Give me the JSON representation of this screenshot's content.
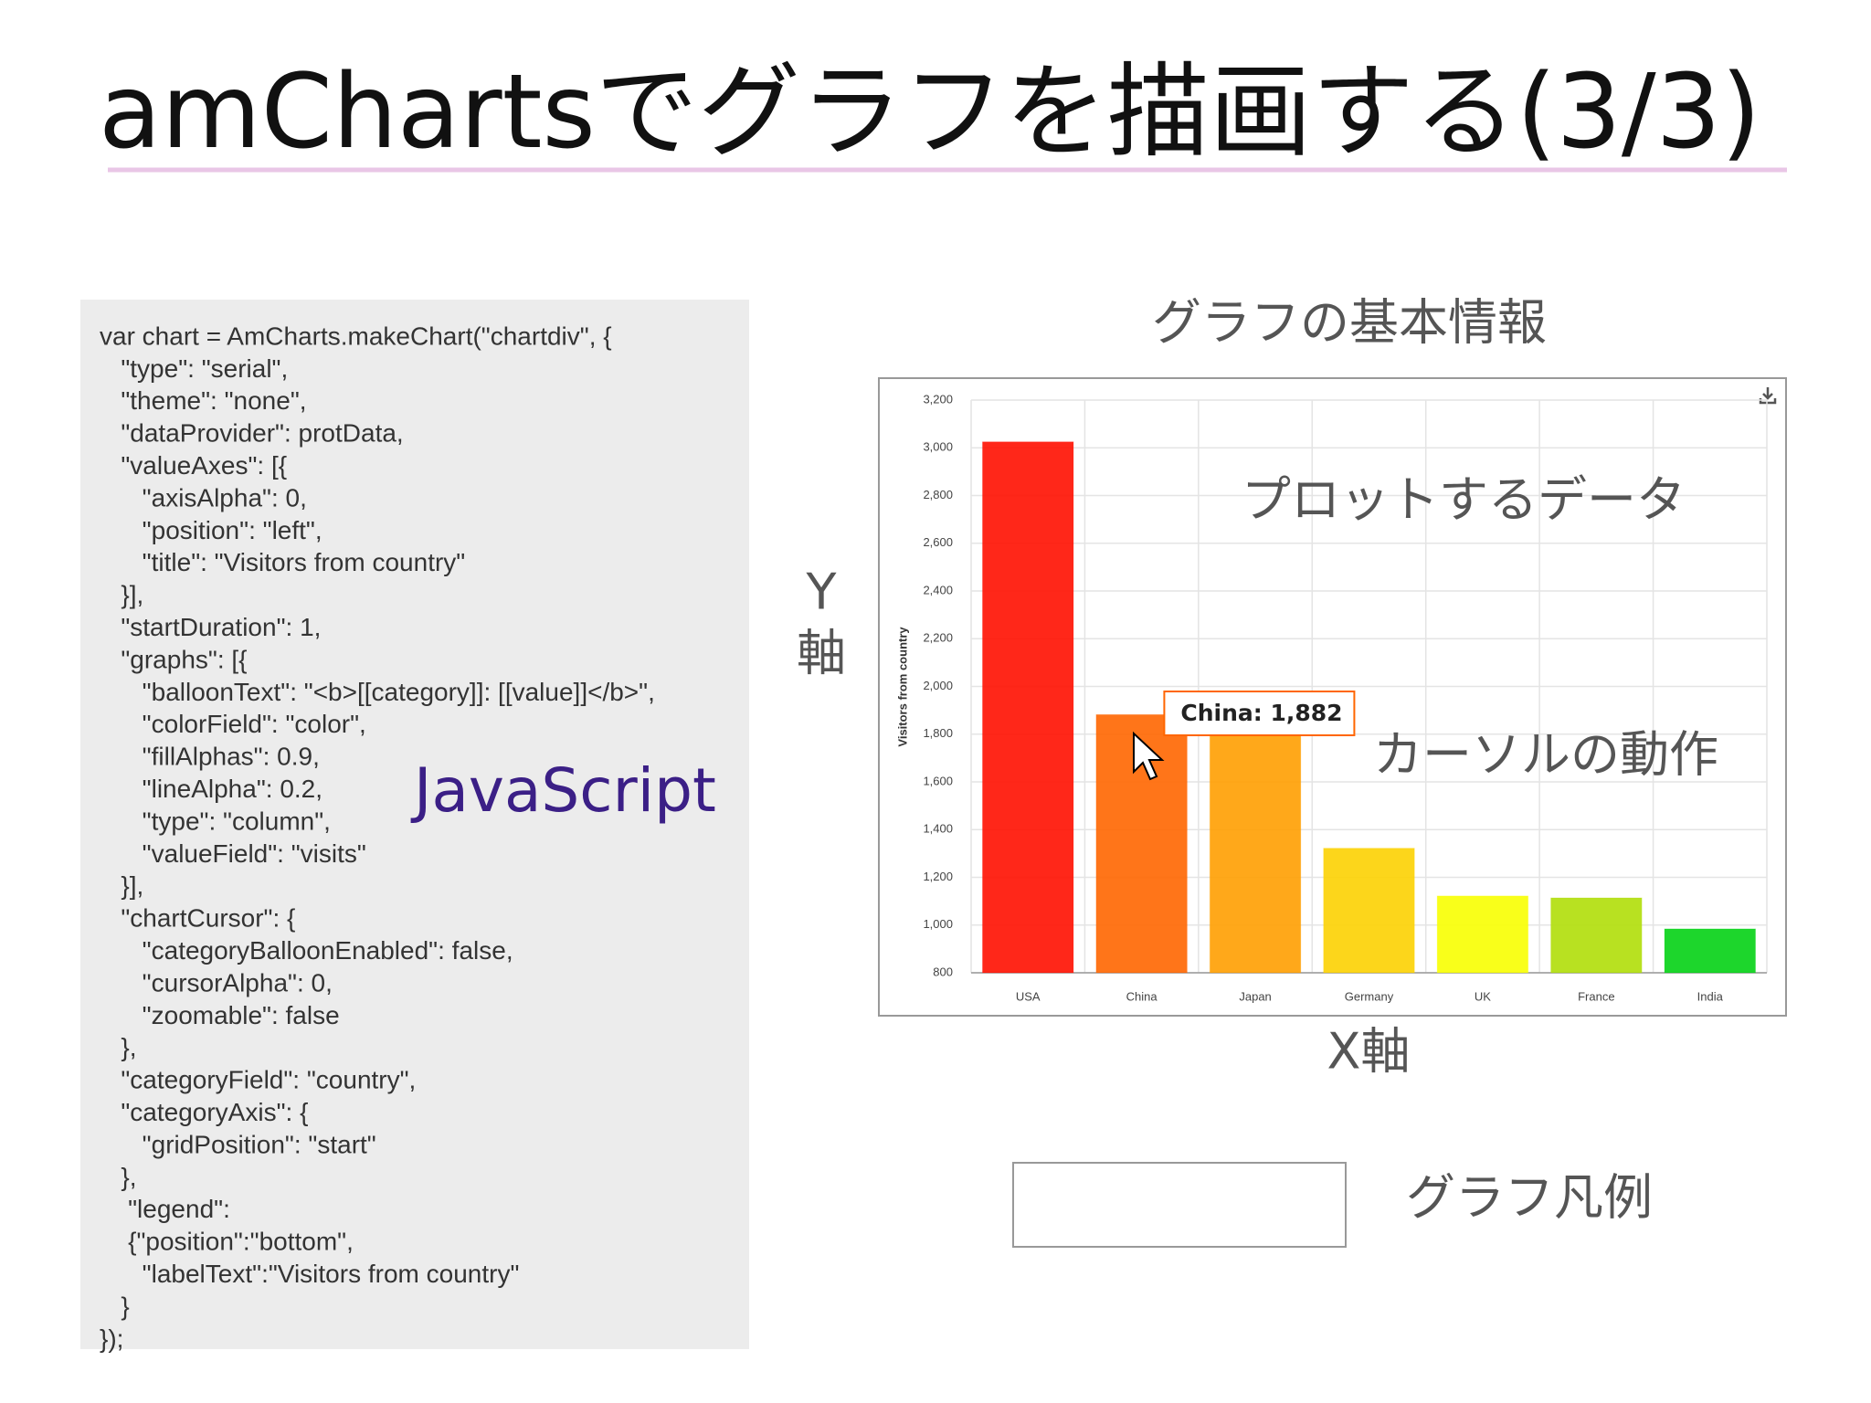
{
  "title": "amChartsでグラフを描画する(3/3)",
  "code": [
    "var chart = AmCharts.makeChart(\"chartdiv\", {",
    "   \"type\": \"serial\",",
    "   \"theme\": \"none\",",
    "   \"dataProvider\": protData,",
    "   \"valueAxes\": [{",
    "      \"axisAlpha\": 0,",
    "      \"position\": \"left\",",
    "      \"title\": \"Visitors from country\"",
    "   }],",
    "   \"startDuration\": 1,",
    "   \"graphs\": [{",
    "      \"balloonText\": \"<b>[[category]]: [[value]]</b>\",",
    "      \"colorField\": \"color\",",
    "      \"fillAlphas\": 0.9,",
    "      \"lineAlpha\": 0.2,",
    "      \"type\": \"column\",",
    "      \"valueField\": \"visits\"",
    "   }],",
    "   \"chartCursor\": {",
    "      \"categoryBalloonEnabled\": false,",
    "      \"cursorAlpha\": 0,",
    "      \"zoomable\": false",
    "   },",
    "   \"categoryField\": \"country\",",
    "   \"categoryAxis\": {",
    "      \"gridPosition\": \"start\"",
    "   },",
    "    \"legend\":",
    "    {\"position\":\"bottom\",",
    "      \"labelText\":\"Visitors from country\"",
    "   }",
    "});"
  ],
  "code_label": "JavaScript",
  "labels": {
    "chart_info": "グラフの基本情報",
    "plot_data": "プロットするデータ",
    "cursor": "カーソルの動作",
    "y_axis_1": "Y",
    "y_axis_2": "軸",
    "x_axis": "X軸",
    "legend": "グラフ凡例"
  },
  "chart_data": {
    "type": "bar",
    "y_label": "Visitors from country",
    "categories": [
      "USA",
      "China",
      "Japan",
      "Germany",
      "UK",
      "France",
      "India"
    ],
    "series": [
      {
        "name": "Visitors from country",
        "color": "#FF6600",
        "values": [
          3025,
          1882,
          1809,
          1322,
          1122,
          1114,
          984
        ],
        "colors": [
          "#FF0F00",
          "#FF6600",
          "#FF9E01",
          "#FCD202",
          "#F8FF01",
          "#B0DE09",
          "#04D215"
        ]
      }
    ],
    "ylim": [
      800,
      3200
    ],
    "yticks": [
      800,
      {
        "value": 1000,
        "label": "1,000"
      },
      {
        "value": 1200,
        "label": "1,200"
      },
      {
        "value": 1400,
        "label": "1,400"
      },
      {
        "value": 1600,
        "label": "1,600"
      },
      {
        "value": 1800,
        "label": "1,800"
      },
      {
        "value": 2000,
        "label": "2,000"
      },
      {
        "value": 2200,
        "label": "2,200"
      },
      {
        "value": 2400,
        "label": "2,400"
      },
      {
        "value": 2600,
        "label": "2,600"
      },
      {
        "value": 2800,
        "label": "2,800"
      },
      {
        "value": 3000,
        "label": "3,000"
      },
      {
        "value": 3200,
        "label": "3,200"
      }
    ],
    "grid": true,
    "tooltip": "China: 1,882",
    "legend": "bottom"
  }
}
